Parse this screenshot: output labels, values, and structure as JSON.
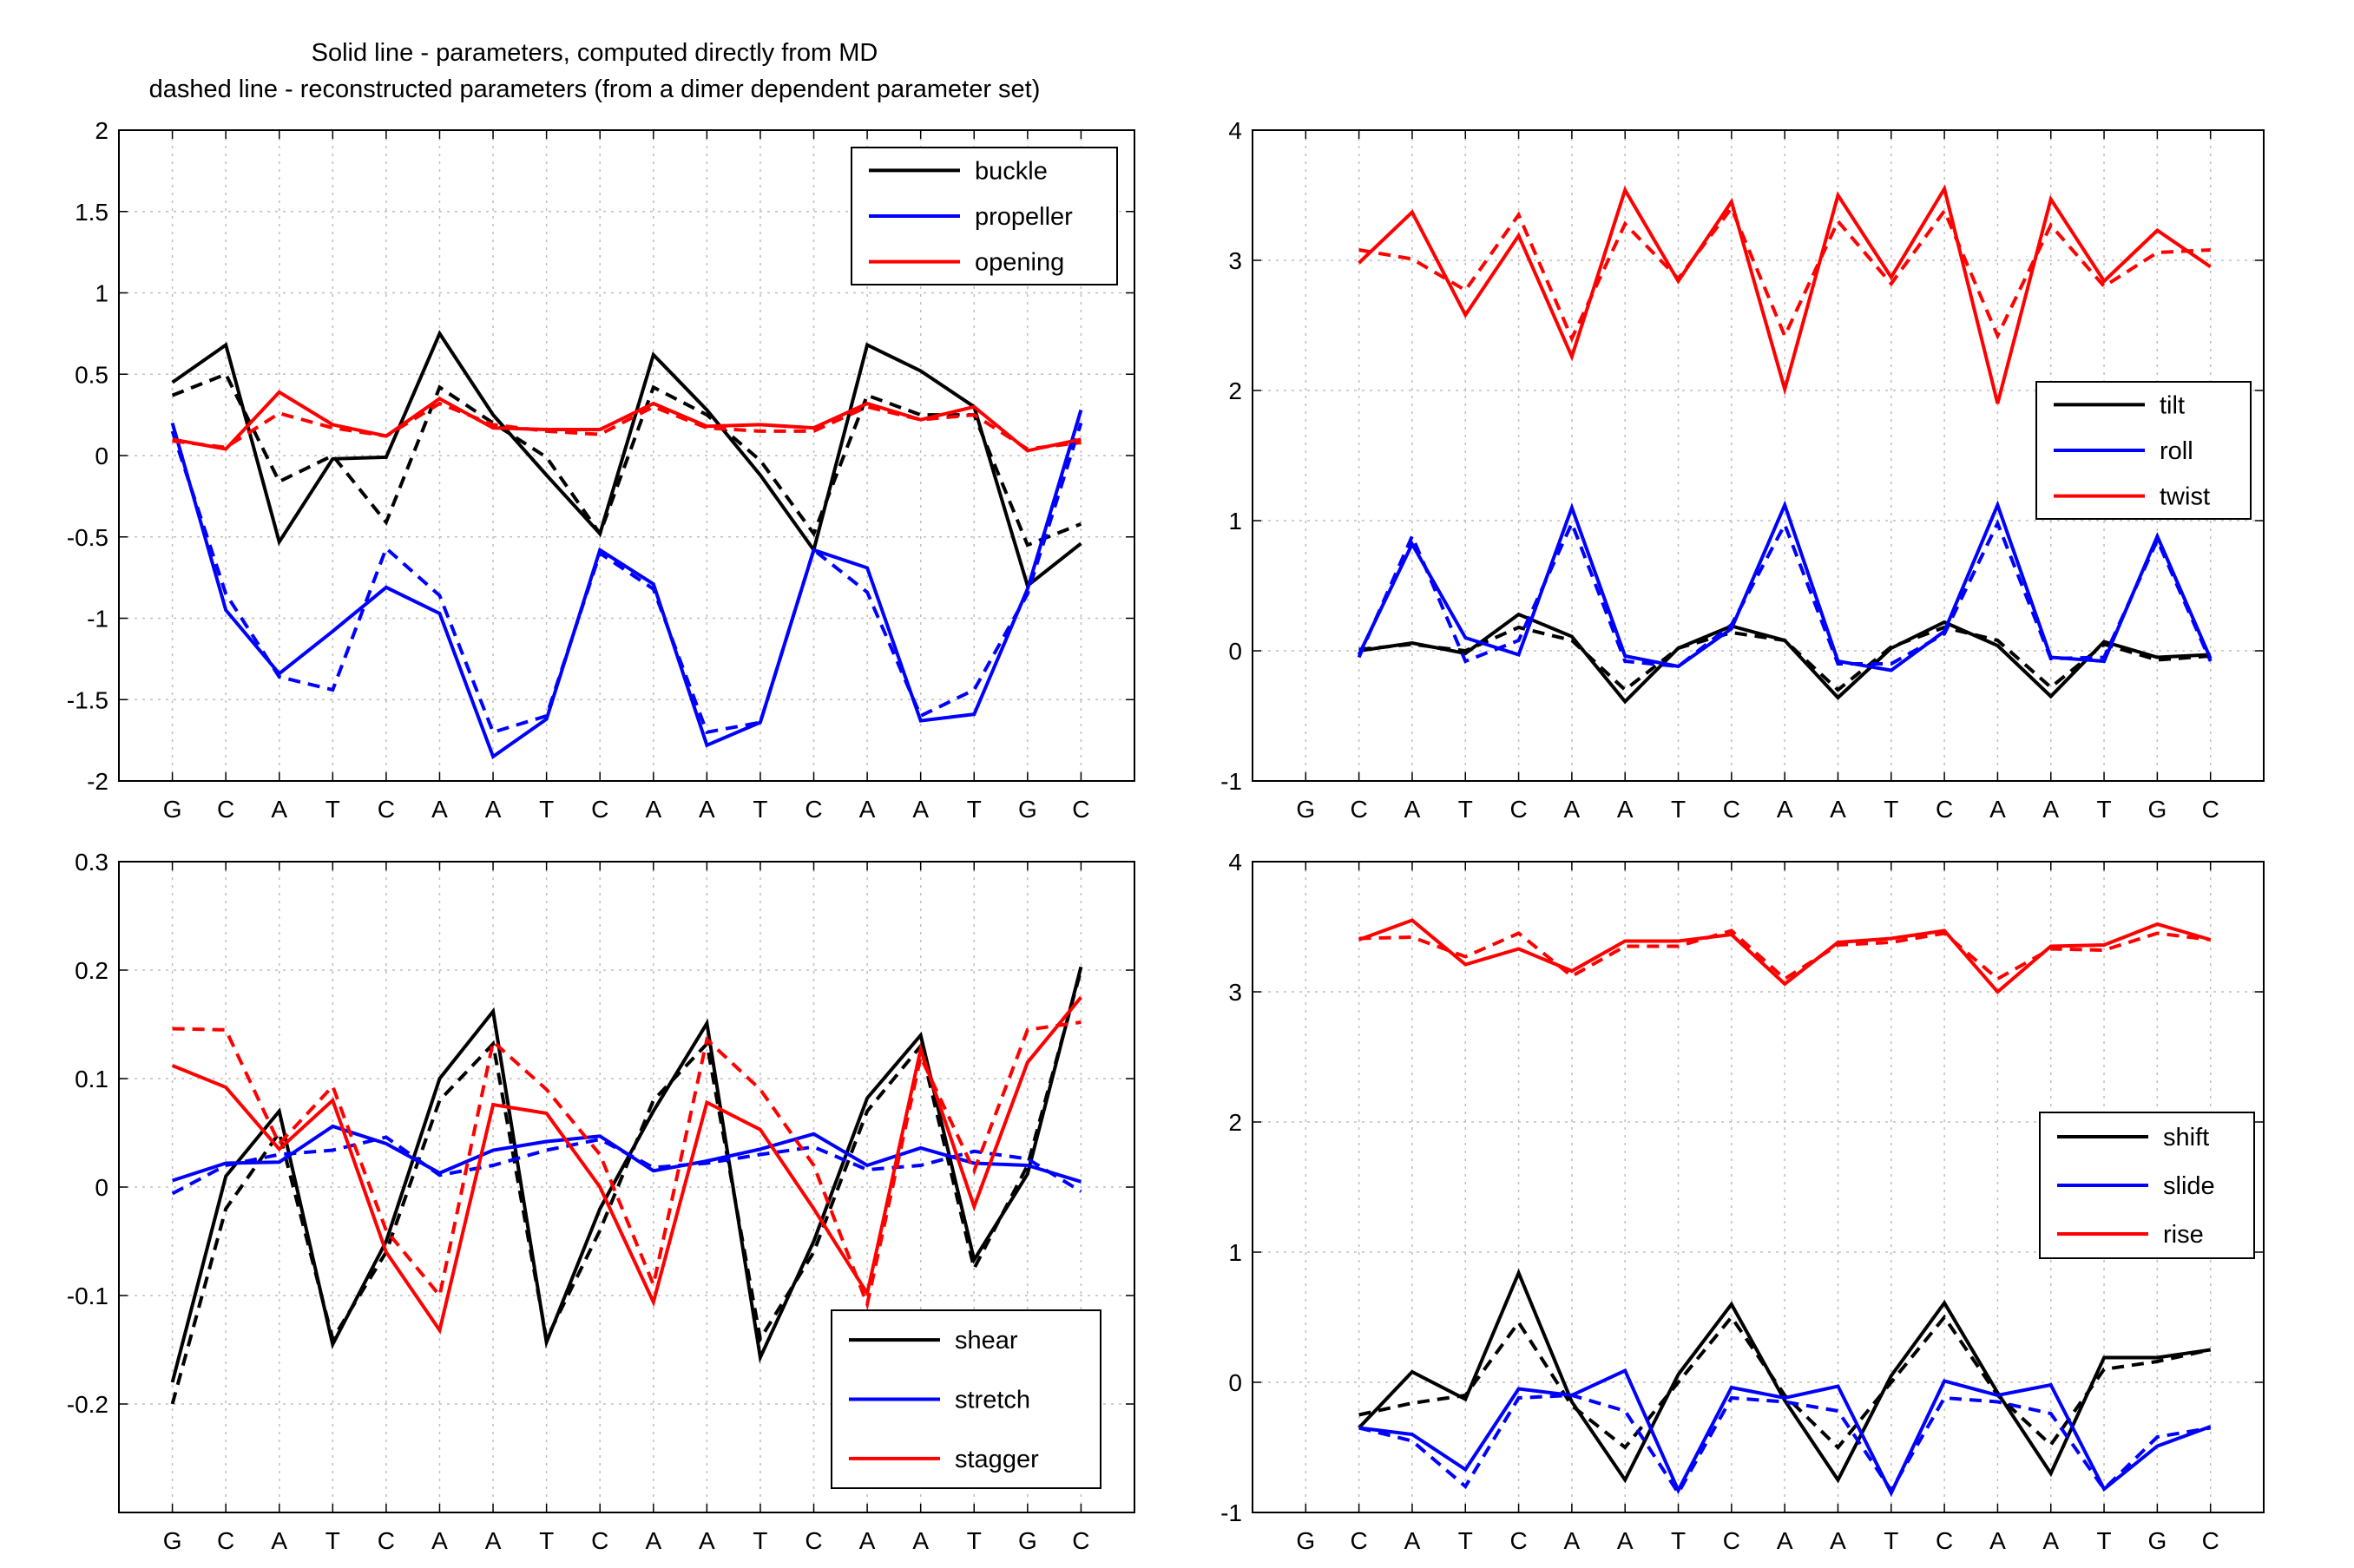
{
  "title": {
    "line1": "Solid line - parameters, computed directly from MD",
    "line2": "dashed line - reconstructed parameters (from a dimer dependent parameter set)"
  },
  "colors": {
    "black": "#000000",
    "blue": "#0000ff",
    "red": "#ff0000",
    "grid": "#bfbfbf"
  },
  "chart_data": [
    {
      "type": "line",
      "id": "tl",
      "categories": [
        "G",
        "C",
        "A",
        "T",
        "C",
        "A",
        "A",
        "T",
        "C",
        "A",
        "A",
        "T",
        "C",
        "A",
        "A",
        "T",
        "G",
        "C"
      ],
      "ylim": [
        -2,
        2
      ],
      "yticks": [
        -2,
        -1.5,
        -1,
        -0.5,
        0,
        0.5,
        1,
        1.5,
        2
      ],
      "ytick_labels": [
        "-2",
        "-1.5",
        "-1",
        "-0.5",
        "0",
        "0.5",
        "1",
        "1.5",
        "2"
      ],
      "grid": true,
      "legend_position": "top-right",
      "series": [
        {
          "name": "buckle",
          "color": "#000000",
          "values": [
            0.45,
            0.68,
            -0.53,
            -0.02,
            -0.01,
            0.75,
            0.25,
            -0.12,
            -0.48,
            0.62,
            0.28,
            -0.12,
            -0.58,
            0.68,
            0.52,
            0.3,
            -0.8,
            -0.54
          ],
          "dashed": [
            0.37,
            0.5,
            -0.16,
            0.0,
            -0.41,
            0.42,
            0.2,
            -0.01,
            -0.48,
            0.42,
            0.25,
            -0.03,
            -0.48,
            0.37,
            0.25,
            0.25,
            -0.55,
            -0.42
          ]
        },
        {
          "name": "propeller",
          "color": "#0000ff",
          "values": [
            0.2,
            -0.95,
            -1.34,
            -1.08,
            -0.81,
            -0.97,
            -1.85,
            -1.62,
            -0.58,
            -0.79,
            -1.78,
            -1.64,
            -0.58,
            -0.69,
            -1.63,
            -1.59,
            -0.82,
            0.28
          ],
          "dashed": [
            0.15,
            -0.85,
            -1.36,
            -1.44,
            -0.57,
            -0.86,
            -1.7,
            -1.6,
            -0.6,
            -0.82,
            -1.7,
            -1.64,
            -0.58,
            -0.84,
            -1.6,
            -1.44,
            -0.85,
            0.2
          ]
        },
        {
          "name": "opening",
          "color": "#ff0000",
          "values": [
            0.1,
            0.04,
            0.39,
            0.19,
            0.12,
            0.35,
            0.17,
            0.16,
            0.16,
            0.32,
            0.18,
            0.19,
            0.17,
            0.32,
            0.22,
            0.3,
            0.03,
            0.1
          ],
          "dashed": [
            0.09,
            0.05,
            0.26,
            0.17,
            0.12,
            0.32,
            0.19,
            0.15,
            0.13,
            0.3,
            0.17,
            0.15,
            0.15,
            0.3,
            0.22,
            0.25,
            0.04,
            0.08
          ]
        }
      ]
    },
    {
      "type": "line",
      "id": "tr",
      "categories": [
        "G",
        "C",
        "A",
        "T",
        "C",
        "A",
        "A",
        "T",
        "C",
        "A",
        "A",
        "T",
        "C",
        "A",
        "A",
        "T",
        "G",
        "C"
      ],
      "ylim": [
        -1,
        4
      ],
      "yticks": [
        -1,
        0,
        1,
        2,
        3,
        4
      ],
      "ytick_labels": [
        "-1",
        "0",
        "1",
        "2",
        "3",
        "4"
      ],
      "grid": true,
      "legend_position": "right",
      "series": [
        {
          "name": "tilt",
          "color": "#000000",
          "values": [
            null,
            0.0,
            0.06,
            -0.02,
            0.28,
            0.11,
            -0.39,
            0.02,
            0.19,
            0.08,
            -0.36,
            0.02,
            0.22,
            0.04,
            -0.35,
            0.07,
            -0.05,
            -0.03
          ],
          "dashed": [
            null,
            0.01,
            0.05,
            0.0,
            0.18,
            0.08,
            -0.3,
            0.02,
            0.14,
            0.08,
            -0.3,
            0.03,
            0.18,
            0.08,
            -0.28,
            0.05,
            -0.07,
            -0.04
          ]
        },
        {
          "name": "roll",
          "color": "#0000ff",
          "values": [
            null,
            -0.03,
            0.82,
            0.1,
            -0.03,
            1.1,
            -0.04,
            -0.12,
            0.17,
            1.12,
            -0.08,
            -0.15,
            0.15,
            1.12,
            -0.05,
            -0.08,
            0.88,
            -0.06
          ],
          "dashed": [
            null,
            -0.05,
            0.88,
            -0.08,
            0.08,
            0.98,
            -0.08,
            -0.12,
            0.2,
            0.97,
            -0.1,
            -0.1,
            0.13,
            0.98,
            -0.06,
            -0.05,
            0.85,
            -0.08
          ]
        },
        {
          "name": "twist",
          "color": "#ff0000",
          "values": [
            null,
            2.98,
            3.37,
            2.58,
            3.19,
            2.26,
            3.54,
            2.84,
            3.45,
            2.01,
            3.5,
            2.87,
            3.55,
            1.9,
            3.47,
            2.84,
            3.23,
            2.95
          ],
          "dashed": [
            null,
            3.08,
            3.01,
            2.77,
            3.35,
            2.4,
            3.28,
            2.86,
            3.4,
            2.42,
            3.3,
            2.82,
            3.38,
            2.42,
            3.27,
            2.8,
            3.06,
            3.08
          ]
        }
      ]
    },
    {
      "type": "line",
      "id": "bl",
      "categories": [
        "G",
        "C",
        "A",
        "T",
        "C",
        "A",
        "A",
        "T",
        "C",
        "A",
        "A",
        "T",
        "C",
        "A",
        "A",
        "T",
        "G",
        "C"
      ],
      "ylim": [
        -0.3,
        0.3
      ],
      "yticks": [
        -0.2,
        -0.1,
        0,
        0.1,
        0.2,
        0.3
      ],
      "ytick_labels": [
        "-0.2",
        "-0.1",
        "0",
        "0.1",
        "0.2",
        "0.3"
      ],
      "grid": true,
      "legend_position": "bottom-right",
      "series": [
        {
          "name": "shear",
          "color": "#000000",
          "values": [
            -0.18,
            0.01,
            0.07,
            -0.145,
            -0.05,
            0.1,
            0.162,
            -0.143,
            -0.02,
            0.07,
            0.151,
            -0.157,
            -0.05,
            0.082,
            0.14,
            -0.067,
            0.012,
            0.203
          ],
          "dashed": [
            -0.2,
            -0.02,
            0.05,
            -0.14,
            -0.06,
            0.08,
            0.132,
            -0.14,
            -0.04,
            0.08,
            0.132,
            -0.14,
            -0.06,
            0.07,
            0.13,
            -0.075,
            0.02,
            0.2
          ]
        },
        {
          "name": "stretch",
          "color": "#0000ff",
          "values": [
            0.006,
            0.022,
            0.023,
            0.056,
            0.04,
            0.013,
            0.034,
            0.042,
            0.047,
            0.015,
            0.024,
            0.035,
            0.049,
            0.02,
            0.036,
            0.022,
            0.02,
            0.005
          ],
          "dashed": [
            -0.006,
            0.02,
            0.03,
            0.034,
            0.046,
            0.011,
            0.02,
            0.034,
            0.044,
            0.018,
            0.022,
            0.03,
            0.037,
            0.016,
            0.02,
            0.033,
            0.026,
            -0.004
          ]
        },
        {
          "name": "stagger",
          "color": "#ff0000",
          "values": [
            0.112,
            0.092,
            0.035,
            0.08,
            -0.06,
            -0.132,
            0.076,
            0.068,
            0.0,
            -0.106,
            0.078,
            0.053,
            -0.02,
            -0.098,
            0.127,
            -0.018,
            0.115,
            0.175
          ],
          "dashed": [
            0.146,
            0.145,
            0.04,
            0.093,
            -0.04,
            -0.1,
            0.134,
            0.09,
            0.03,
            -0.09,
            0.136,
            0.09,
            0.02,
            -0.108,
            0.12,
            0.015,
            0.145,
            0.152
          ]
        }
      ]
    },
    {
      "type": "line",
      "id": "br",
      "categories": [
        "G",
        "C",
        "A",
        "T",
        "C",
        "A",
        "A",
        "T",
        "C",
        "A",
        "A",
        "T",
        "C",
        "A",
        "A",
        "T",
        "G",
        "C"
      ],
      "ylim": [
        -1,
        4
      ],
      "yticks": [
        -1,
        0,
        1,
        2,
        3,
        4
      ],
      "ytick_labels": [
        "-1",
        "0",
        "1",
        "2",
        "3",
        "4"
      ],
      "grid": true,
      "legend_position": "right",
      "series": [
        {
          "name": "shift",
          "color": "#000000",
          "values": [
            null,
            -0.35,
            0.08,
            -0.13,
            0.84,
            -0.15,
            -0.75,
            0.06,
            0.6,
            -0.14,
            -0.75,
            0.05,
            0.61,
            -0.08,
            -0.7,
            0.19,
            0.19,
            0.25
          ],
          "dashed": [
            null,
            -0.25,
            -0.16,
            -0.1,
            0.46,
            -0.18,
            -0.5,
            0.0,
            0.5,
            -0.1,
            -0.5,
            0.0,
            0.5,
            -0.1,
            -0.48,
            0.1,
            0.16,
            0.25
          ]
        },
        {
          "name": "slide",
          "color": "#0000ff",
          "values": [
            null,
            -0.35,
            -0.4,
            -0.67,
            -0.05,
            -0.1,
            0.09,
            -0.83,
            -0.04,
            -0.12,
            -0.03,
            -0.85,
            0.01,
            -0.1,
            -0.02,
            -0.82,
            -0.49,
            -0.34
          ],
          "dashed": [
            null,
            -0.35,
            -0.45,
            -0.8,
            -0.12,
            -0.1,
            -0.22,
            -0.85,
            -0.12,
            -0.15,
            -0.22,
            -0.83,
            -0.12,
            -0.15,
            -0.24,
            -0.82,
            -0.42,
            -0.35
          ]
        },
        {
          "name": "rise",
          "color": "#ff0000",
          "values": [
            null,
            3.4,
            3.55,
            3.21,
            3.33,
            3.16,
            3.39,
            3.39,
            3.44,
            3.06,
            3.38,
            3.41,
            3.47,
            3.0,
            3.35,
            3.36,
            3.52,
            3.4
          ],
          "dashed": [
            null,
            3.41,
            3.42,
            3.27,
            3.45,
            3.12,
            3.35,
            3.35,
            3.47,
            3.1,
            3.36,
            3.38,
            3.45,
            3.1,
            3.33,
            3.32,
            3.45,
            3.4
          ]
        }
      ]
    }
  ]
}
